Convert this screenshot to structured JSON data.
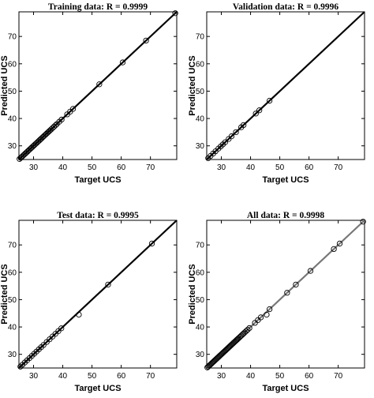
{
  "chart_data": [
    {
      "type": "scatter",
      "title": "Training data: R = 0.9999",
      "xlabel": "Target UCS",
      "ylabel": "Predicted UCS",
      "xlim": [
        25,
        79
      ],
      "ylim": [
        25,
        79
      ],
      "xticks": [
        30,
        40,
        50,
        60,
        70
      ],
      "yticks": [
        30,
        40,
        50,
        60,
        70
      ],
      "grid": false,
      "fit_line": {
        "from": [
          25,
          25
        ],
        "to": [
          79,
          79
        ],
        "color": "#000000"
      },
      "points": {
        "x": [
          25.2,
          25.6,
          26.0,
          26.4,
          26.8,
          27.2,
          27.6,
          28.0,
          28.4,
          28.8,
          29.2,
          29.6,
          30.0,
          30.4,
          30.8,
          31.2,
          31.6,
          32.0,
          32.4,
          32.8,
          33.2,
          33.6,
          34.0,
          34.4,
          34.8,
          35.2,
          35.6,
          36.0,
          36.5,
          37.0,
          37.5,
          38.0,
          38.8,
          39.6,
          41.5,
          42.5,
          43.5,
          52.5,
          60.5,
          68.5,
          78.5
        ],
        "y": [
          25.2,
          25.6,
          26.0,
          26.4,
          26.8,
          27.2,
          27.6,
          28.0,
          28.4,
          28.8,
          29.2,
          29.6,
          30.0,
          30.4,
          30.8,
          31.2,
          31.6,
          32.0,
          32.4,
          32.8,
          33.2,
          33.6,
          34.0,
          34.4,
          34.8,
          35.2,
          35.6,
          36.0,
          36.5,
          37.0,
          37.5,
          38.0,
          38.8,
          39.6,
          41.5,
          42.5,
          43.5,
          52.5,
          60.5,
          68.5,
          78.5
        ]
      }
    },
    {
      "type": "scatter",
      "title": "Validation data: R = 0.9996",
      "xlabel": "Target UCS",
      "ylabel": "Predicted UCS",
      "xlim": [
        25,
        79
      ],
      "ylim": [
        25,
        79
      ],
      "xticks": [
        30,
        40,
        50,
        60,
        70
      ],
      "yticks": [
        30,
        40,
        50,
        60,
        70
      ],
      "grid": false,
      "fit_line": {
        "from": [
          25,
          25
        ],
        "to": [
          79,
          79
        ],
        "color": "#000000"
      },
      "points": {
        "x": [
          25.5,
          26.3,
          27.2,
          28.0,
          29.0,
          29.8,
          30.5,
          31.3,
          32.5,
          33.5,
          35.0,
          36.8,
          37.6,
          41.8,
          43.0,
          46.5
        ],
        "y": [
          25.5,
          26.3,
          27.2,
          28.0,
          29.0,
          29.8,
          30.5,
          31.3,
          32.5,
          33.5,
          35.0,
          36.8,
          37.6,
          41.8,
          43.0,
          46.5
        ]
      }
    },
    {
      "type": "scatter",
      "title": "Test data: R = 0.9995",
      "xlabel": "Target UCS",
      "ylabel": "Predicted UCS",
      "xlim": [
        25,
        79
      ],
      "ylim": [
        25,
        79
      ],
      "xticks": [
        30,
        40,
        50,
        60,
        70
      ],
      "yticks": [
        30,
        40,
        50,
        60,
        70
      ],
      "grid": false,
      "fit_line": {
        "from": [
          25,
          25
        ],
        "to": [
          79,
          79
        ],
        "color": "#000000"
      },
      "points": {
        "x": [
          25.5,
          26.2,
          27.0,
          27.8,
          28.6,
          29.4,
          30.2,
          31.0,
          31.8,
          32.6,
          33.4,
          34.5,
          35.5,
          36.5,
          37.5,
          38.5,
          39.5,
          45.5,
          55.5,
          70.5
        ],
        "y": [
          25.5,
          26.2,
          27.0,
          27.8,
          28.6,
          29.4,
          30.2,
          31.0,
          31.8,
          32.6,
          33.4,
          34.5,
          35.5,
          36.5,
          37.5,
          38.5,
          39.5,
          44.5,
          55.5,
          70.5
        ]
      }
    },
    {
      "type": "scatter",
      "title": "All data: R = 0.9998",
      "xlabel": "Target UCS",
      "ylabel": "Predicted UCS",
      "xlim": [
        25,
        79
      ],
      "ylim": [
        25,
        79
      ],
      "xticks": [
        30,
        40,
        50,
        60,
        70
      ],
      "yticks": [
        30,
        40,
        50,
        60,
        70
      ],
      "grid": false,
      "fit_line": {
        "from": [
          25,
          25
        ],
        "to": [
          79,
          79
        ],
        "color": "#777777"
      },
      "points": {
        "x": [
          25.2,
          25.5,
          25.8,
          26.1,
          26.4,
          26.7,
          27.0,
          27.3,
          27.6,
          27.9,
          28.2,
          28.5,
          28.8,
          29.1,
          29.4,
          29.7,
          30.0,
          30.3,
          30.6,
          30.9,
          31.2,
          31.5,
          31.8,
          32.1,
          32.4,
          32.7,
          33.0,
          33.3,
          33.6,
          33.9,
          34.2,
          34.5,
          34.8,
          35.1,
          35.4,
          35.7,
          36.0,
          36.4,
          36.8,
          37.2,
          37.6,
          38.0,
          38.5,
          39.0,
          39.6,
          41.5,
          42.5,
          43.5,
          45.5,
          46.5,
          52.5,
          55.5,
          60.5,
          68.5,
          70.5,
          78.5
        ],
        "y": [
          25.2,
          25.5,
          25.8,
          26.1,
          26.4,
          26.7,
          27.0,
          27.3,
          27.6,
          27.9,
          28.2,
          28.5,
          28.8,
          29.1,
          29.4,
          29.7,
          30.0,
          30.3,
          30.6,
          30.9,
          31.2,
          31.5,
          31.8,
          32.1,
          32.4,
          32.7,
          33.0,
          33.3,
          33.6,
          33.9,
          34.2,
          34.5,
          34.8,
          35.1,
          35.4,
          35.7,
          36.0,
          36.4,
          36.8,
          37.2,
          37.6,
          38.0,
          38.5,
          39.0,
          39.6,
          41.5,
          42.5,
          43.5,
          44.5,
          46.5,
          52.5,
          55.5,
          60.5,
          68.5,
          70.5,
          78.5
        ]
      }
    }
  ]
}
